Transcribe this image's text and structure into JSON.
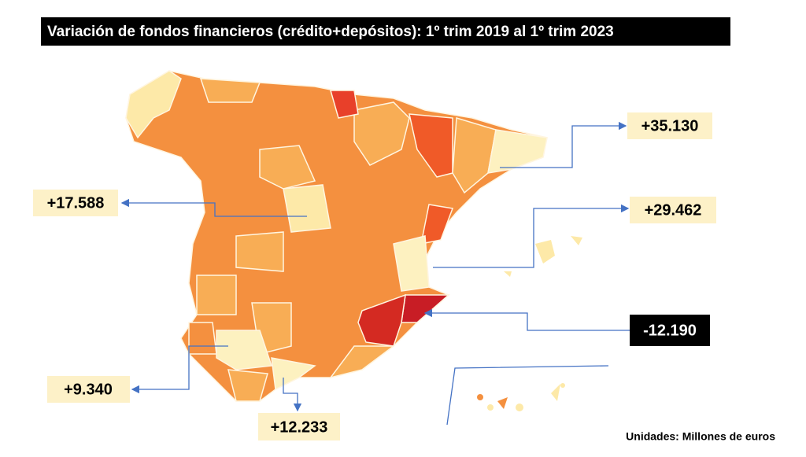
{
  "title": "Variación de fondos financieros (crédito+depósitos): 1º trim 2019 al 1º trim 2023",
  "callouts": [
    {
      "label": "+35.130"
    },
    {
      "label": "+29.462"
    },
    {
      "label": "+17.588"
    },
    {
      "label": "-12.190"
    },
    {
      "label": "+9.340"
    },
    {
      "label": "+12.233"
    }
  ],
  "note": "Unidades: Millones de euros"
}
